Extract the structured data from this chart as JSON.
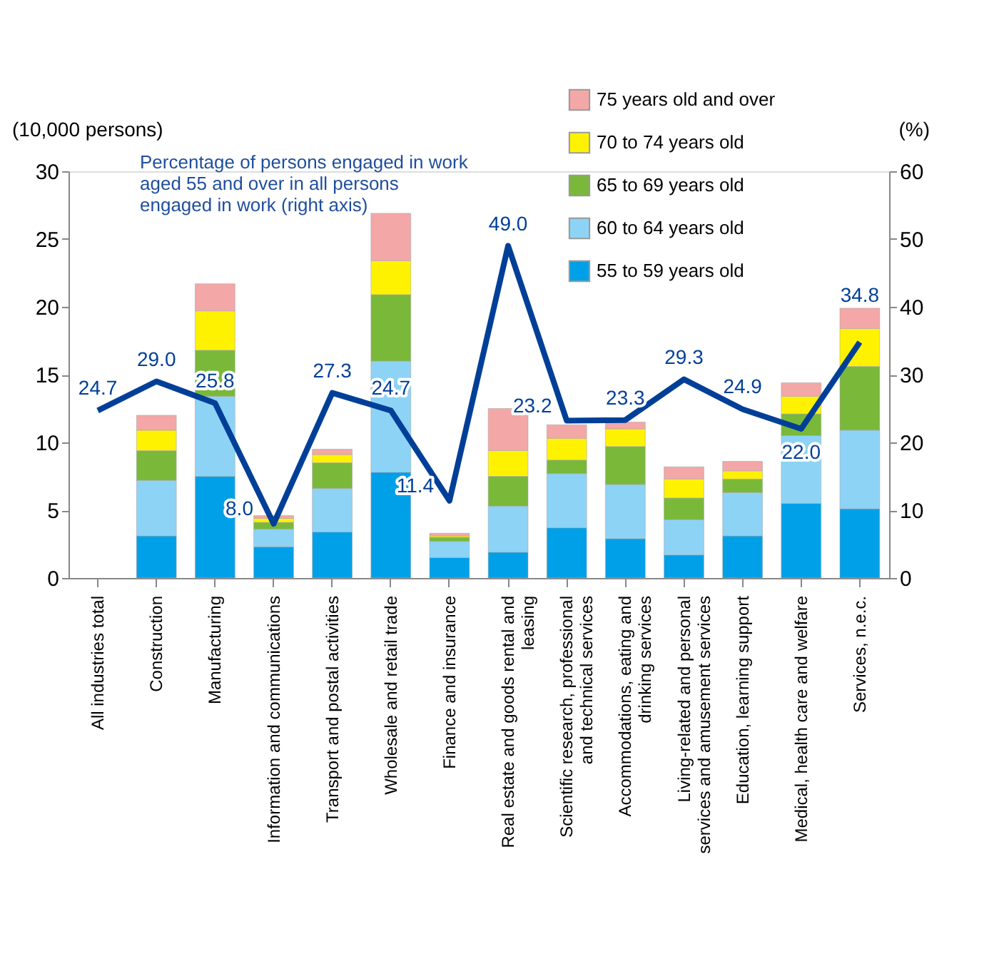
{
  "chart_data": {
    "type": "bar",
    "stacked": true,
    "categories": [
      "All industries total",
      "Construction",
      "Manufacturing",
      "Information and communications",
      "Transport and postal activities",
      "Wholesale and retail trade",
      "Finance and insurance",
      "Real estate and goods rental and leasing",
      "Scientific research, professional and technical services",
      "Accommodations, eating and drinking services",
      "Living-related and personal services and amusement services",
      "Education, learning support",
      "Medical, health care and welfare",
      "Services, n.e.c."
    ],
    "ylabel": "(10,000 persons)",
    "y2label": "(%)",
    "ylim": [
      0,
      30
    ],
    "yticks": [
      0,
      5,
      10,
      15,
      20,
      25,
      30
    ],
    "y2lim": [
      0,
      60
    ],
    "y2ticks": [
      0,
      10,
      20,
      30,
      40,
      50,
      60
    ],
    "grid": false,
    "legend": "top right",
    "annotations": [
      "Percentage of persons engaged in work aged 55 and over in all persons engaged in work (right axis)"
    ],
    "series": [
      {
        "name": "55 to 59 years old",
        "color": "#00a0e9",
        "values": [
          null,
          3.1,
          7.5,
          2.3,
          3.4,
          7.8,
          1.5,
          1.9,
          3.7,
          2.9,
          1.7,
          3.1,
          5.5,
          5.1
        ]
      },
      {
        "name": "60 to 64 years old",
        "color": "#8dd3f6",
        "values": [
          null,
          4.1,
          5.9,
          1.3,
          3.2,
          8.2,
          1.2,
          3.4,
          4.0,
          4.0,
          2.6,
          3.2,
          5.0,
          5.8
        ]
      },
      {
        "name": "65 to 69 years old",
        "color": "#7ab83a",
        "values": [
          null,
          2.2,
          3.4,
          0.5,
          1.9,
          4.9,
          0.3,
          2.2,
          1.0,
          2.8,
          1.6,
          1.0,
          1.6,
          4.7
        ]
      },
      {
        "name": "70 to 74 years old",
        "color": "#fff200",
        "values": [
          null,
          1.5,
          2.9,
          0.3,
          0.6,
          2.5,
          0.1,
          1.9,
          1.6,
          1.3,
          1.4,
          0.6,
          1.3,
          2.8
        ]
      },
      {
        "name": "75 years old and over",
        "color": "#f4a7a7",
        "values": [
          null,
          1.1,
          2.0,
          0.2,
          0.4,
          3.5,
          0.2,
          3.1,
          1.0,
          0.5,
          0.9,
          0.7,
          1.0,
          1.5
        ]
      },
      {
        "type": "line",
        "axis": "y2",
        "color": "#003f98",
        "values": [
          24.7,
          29.0,
          25.8,
          8.0,
          27.3,
          24.7,
          11.4,
          49.0,
          23.2,
          23.3,
          29.3,
          24.9,
          22.0,
          34.8
        ],
        "value_labels": [
          "24.7",
          "29.0",
          "25.8",
          "8.0",
          "27.3",
          "24.7",
          "11.4",
          "49.0",
          "23.2",
          "23.3",
          "29.3",
          "24.9",
          "22.0",
          "34.8"
        ]
      }
    ]
  }
}
